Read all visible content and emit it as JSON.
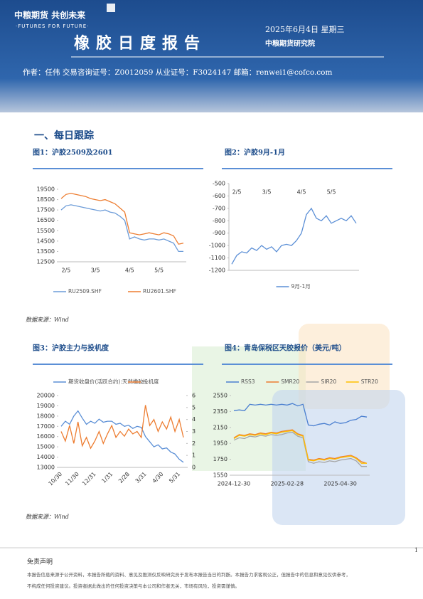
{
  "header": {
    "logo": "中粮期货 共创未来",
    "slogan": "·FUTURES FOR FUTURE·",
    "title": "橡胶日度报告",
    "date": "2025年6月4日 星期三",
    "institute": "中粮期货研究院",
    "author": "作者：任伟    交易咨询证号：Z0012059    从业证号：F3024147    邮箱：renwei1@cofco.com"
  },
  "section": "一、每日跟踪",
  "sources": [
    "数据来源：Wind",
    "数据来源：Wind"
  ],
  "disclaimer": {
    "title": "免责声明",
    "lines": [
      "本报告信息来源于公开资料，本报告所载的资料、意见及推测仅反映研究员于发布本报告当日的判断。本报告力求客观公正，但报告中的信息和意见仅供参考，",
      "不构成任何投资建议。投资者据此做出的任何投资决策与本公司和作者无关，市场有风险，投资需谨慎。"
    ]
  },
  "page_number": "1",
  "chart_data": [
    {
      "type": "line",
      "title": "图1：沪胶2509及2601",
      "legend": "bottom",
      "xaxis": "bottom",
      "categories": [
        null,
        "2/5",
        null,
        null,
        null,
        null,
        null,
        "3/5",
        null,
        null,
        null,
        null,
        null,
        null,
        "4/5",
        null,
        null,
        null,
        null,
        null,
        "5/5",
        null,
        null,
        null,
        null,
        null
      ],
      "ylim": [
        12500,
        19500
      ],
      "yticks": [
        12500,
        13500,
        14500,
        15500,
        16500,
        17500,
        18500,
        19500
      ],
      "series": [
        {
          "name": "RU2509.SHF",
          "color": "#6b9bd8",
          "values": [
            17500,
            17900,
            18000,
            17900,
            17800,
            17700,
            17600,
            17500,
            17400,
            17500,
            17300,
            17200,
            16900,
            16500,
            14700,
            14900,
            14700,
            14600,
            14700,
            14700,
            14600,
            14700,
            14500,
            14300,
            13500,
            13500
          ]
        },
        {
          "name": "RU2601.SHF",
          "color": "#ed7d31",
          "values": [
            18600,
            19000,
            19100,
            19000,
            18900,
            18800,
            18600,
            18500,
            18400,
            18500,
            18300,
            18100,
            17700,
            17300,
            15300,
            15200,
            15100,
            15200,
            15300,
            15200,
            15100,
            15300,
            15200,
            15000,
            14200,
            14300
          ]
        }
      ]
    },
    {
      "type": "line",
      "title": "图2：沪胶9月-1月",
      "legend": "bottom",
      "xaxis": "top",
      "categories": [
        null,
        "2/5",
        null,
        null,
        null,
        null,
        null,
        "3/5",
        null,
        null,
        null,
        null,
        null,
        null,
        "4/5",
        null,
        null,
        null,
        null,
        null,
        "5/5",
        null,
        null,
        null,
        null,
        null
      ],
      "ylim": [
        -1200,
        -500
      ],
      "yticks": [
        -500,
        -600,
        -700,
        -800,
        -900,
        -1000,
        -1100,
        -1200
      ],
      "series": [
        {
          "name": "9月-1月",
          "color": "#5b8fd6",
          "values": [
            -1150,
            -1080,
            -1050,
            -1060,
            -1020,
            -1040,
            -1000,
            -1030,
            -1010,
            -1050,
            -1000,
            -990,
            -1000,
            -960,
            -900,
            -750,
            -700,
            -780,
            -800,
            -760,
            -820,
            -800,
            -780,
            -800,
            -760,
            -820
          ]
        }
      ]
    },
    {
      "type": "line",
      "title": "图3：沪胶主力与投机度",
      "legend": "top",
      "xaxis": "rotated",
      "categories": [
        "10/30",
        null,
        null,
        null,
        "11/30",
        null,
        null,
        null,
        "12/31",
        null,
        null,
        null,
        "1/31",
        null,
        null,
        null,
        "2/28",
        null,
        null,
        null,
        "3/31",
        null,
        null,
        null,
        "4/30",
        null,
        null,
        null,
        "5/31",
        null
      ],
      "ylim": [
        13000,
        20000
      ],
      "yticks": [
        13000,
        14000,
        15000,
        16000,
        17000,
        18000,
        19000,
        20000
      ],
      "y2lim": [
        0,
        6
      ],
      "y2ticks": [
        0,
        1,
        2,
        3,
        4,
        5,
        6
      ],
      "series": [
        {
          "name": "期货收盘价(活跃合约):天然橡胶",
          "color": "#5b8fd6",
          "values": [
            17000,
            17500,
            17200,
            18000,
            18500,
            17800,
            17200,
            17500,
            17300,
            17700,
            17400,
            17500,
            17500,
            17200,
            17300,
            17000,
            17100,
            16800,
            17000,
            16900,
            16000,
            15500,
            15000,
            15200,
            14800,
            14900,
            14500,
            14300,
            13800,
            13500
          ]
        },
        {
          "name": "投机度",
          "color": "#ed7d31",
          "axis": "y2",
          "values": [
            3.0,
            2.2,
            3.5,
            2.0,
            3.8,
            1.8,
            2.5,
            1.6,
            2.2,
            3.0,
            2.0,
            2.8,
            3.5,
            2.5,
            3.0,
            2.6,
            3.2,
            2.8,
            3.0,
            2.5,
            5.2,
            3.5,
            4.0,
            3.0,
            3.8,
            3.2,
            4.2,
            3.0,
            4.0,
            2.5
          ]
        }
      ]
    },
    {
      "type": "line",
      "title": "图4：青岛保税区天胶报价（美元/吨）",
      "legend": "top",
      "xaxis": "bottom",
      "categories": [
        "2024-12-30",
        null,
        null,
        null,
        null,
        null,
        null,
        null,
        null,
        null,
        "2025-02-28",
        null,
        null,
        null,
        null,
        null,
        null,
        null,
        null,
        null,
        "2025-04-30",
        null,
        null,
        null,
        null,
        null
      ],
      "ylim": [
        1550,
        2550
      ],
      "yticks": [
        1550,
        1750,
        1950,
        2150,
        2350,
        2550
      ],
      "series": [
        {
          "name": "RSS3",
          "color": "#4a7fd0",
          "values": [
            2360,
            2370,
            2360,
            2440,
            2430,
            2440,
            2430,
            2440,
            2430,
            2440,
            2430,
            2450,
            2420,
            2440,
            2180,
            2170,
            2190,
            2200,
            2180,
            2220,
            2200,
            2210,
            2240,
            2250,
            2290,
            2280
          ]
        },
        {
          "name": "SMR20",
          "color": "#ed7d31",
          "values": [
            2020,
            2060,
            2050,
            2070,
            2060,
            2080,
            2070,
            2090,
            2080,
            2100,
            2110,
            2120,
            2070,
            2050,
            1750,
            1740,
            1760,
            1750,
            1770,
            1760,
            1780,
            1790,
            1800,
            1770,
            1720,
            1700
          ]
        },
        {
          "name": "SIR20",
          "color": "#a5a5a5",
          "values": [
            1990,
            2020,
            2010,
            2040,
            2030,
            2050,
            2040,
            2060,
            2050,
            2060,
            2080,
            2090,
            2040,
            2020,
            1720,
            1700,
            1720,
            1710,
            1730,
            1720,
            1740,
            1750,
            1760,
            1730,
            1660,
            1660
          ]
        },
        {
          "name": "STR20",
          "color": "#ffc000",
          "values": [
            2010,
            2050,
            2040,
            2060,
            2050,
            2070,
            2060,
            2080,
            2070,
            2090,
            2100,
            2110,
            2060,
            2040,
            1740,
            1730,
            1750,
            1740,
            1760,
            1750,
            1770,
            1780,
            1790,
            1760,
            1700,
            1700
          ]
        }
      ]
    }
  ]
}
